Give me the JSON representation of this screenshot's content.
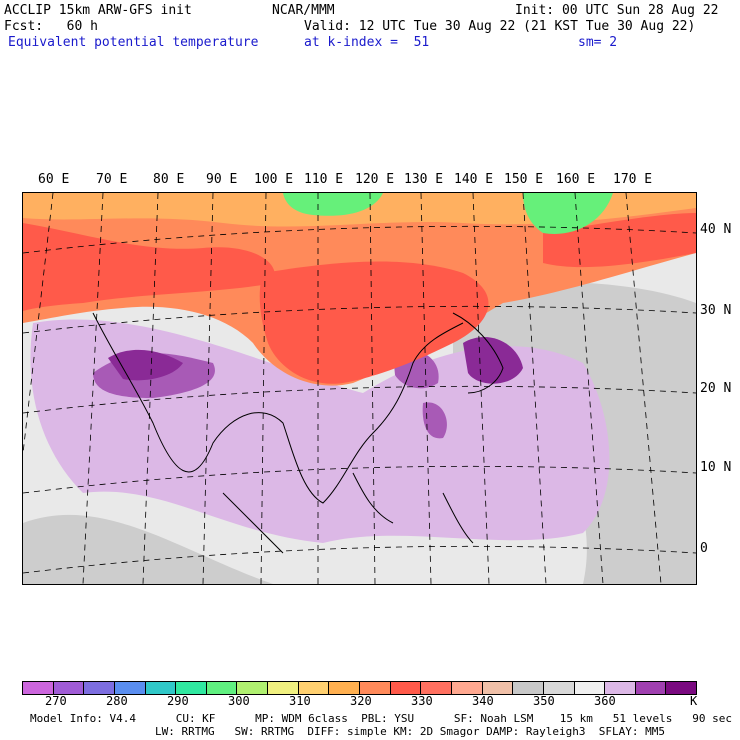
{
  "header": {
    "line1_left": "ACCLIP 15km ARW-GFS init",
    "line1_mid": "NCAR/MMM",
    "line1_right": "Init: 00 UTC Sun 28 Aug 22",
    "line2_left": "Fcst:   60 h",
    "line2_right": "Valid: 12 UTC Tue 30 Aug 22 (21 KST Tue 30 Aug 22)",
    "line3_left": "Equivalent potential temperature",
    "line3_mid": "at k-index =  51",
    "line3_right": "sm= 2"
  },
  "map": {
    "longitude_labels": [
      "60 E",
      "70 E",
      "80 E",
      "90 E",
      "100 E",
      "110 E",
      "120 E",
      "130 E",
      "140 E",
      "150 E",
      "160 E",
      "170 E"
    ],
    "latitude_labels": [
      "40 N",
      "30 N",
      "20 N",
      "10 N",
      "0"
    ],
    "colors": {
      "land_hot": "#ff5a4a",
      "land_warm": "#ff8a5a",
      "north_cool": "#ffb060",
      "green_band": "#66f07a",
      "ocean_gray": "#c8c8c8",
      "light_gray": "#e9e9e9",
      "lavender": "#dcb8e6",
      "mid_purple": "#a85ab6",
      "dark_purple": "#8a2a96"
    }
  },
  "colorbar": {
    "colors": [
      "#cc66dd",
      "#a05cd6",
      "#7d6ee0",
      "#5a8ef0",
      "#30c8c8",
      "#30e8a0",
      "#60f080",
      "#b0f070",
      "#f0f080",
      "#ffd070",
      "#ffb050",
      "#ff8a5a",
      "#ff5a4a",
      "#ff7060",
      "#ffa890",
      "#f0c0a8",
      "#c8c8c8",
      "#d8d8d8",
      "#f0f0f0",
      "#dcb8e6",
      "#a040b0",
      "#7a0a80"
    ],
    "labels": [
      "270",
      "280",
      "290",
      "300",
      "310",
      "320",
      "330",
      "340",
      "350",
      "360"
    ],
    "unit": "K"
  },
  "model_info": {
    "line1": "Model Info: V4.4      CU: KF      MP: WDM 6class  PBL: YSU      SF: Noah LSM    15 km   51 levels   90 sec",
    "line2": "LW: RRTMG   SW: RRTMG  DIFF: simple KM: 2D Smagor DAMP: Rayleigh3  SFLAY: MM5"
  }
}
